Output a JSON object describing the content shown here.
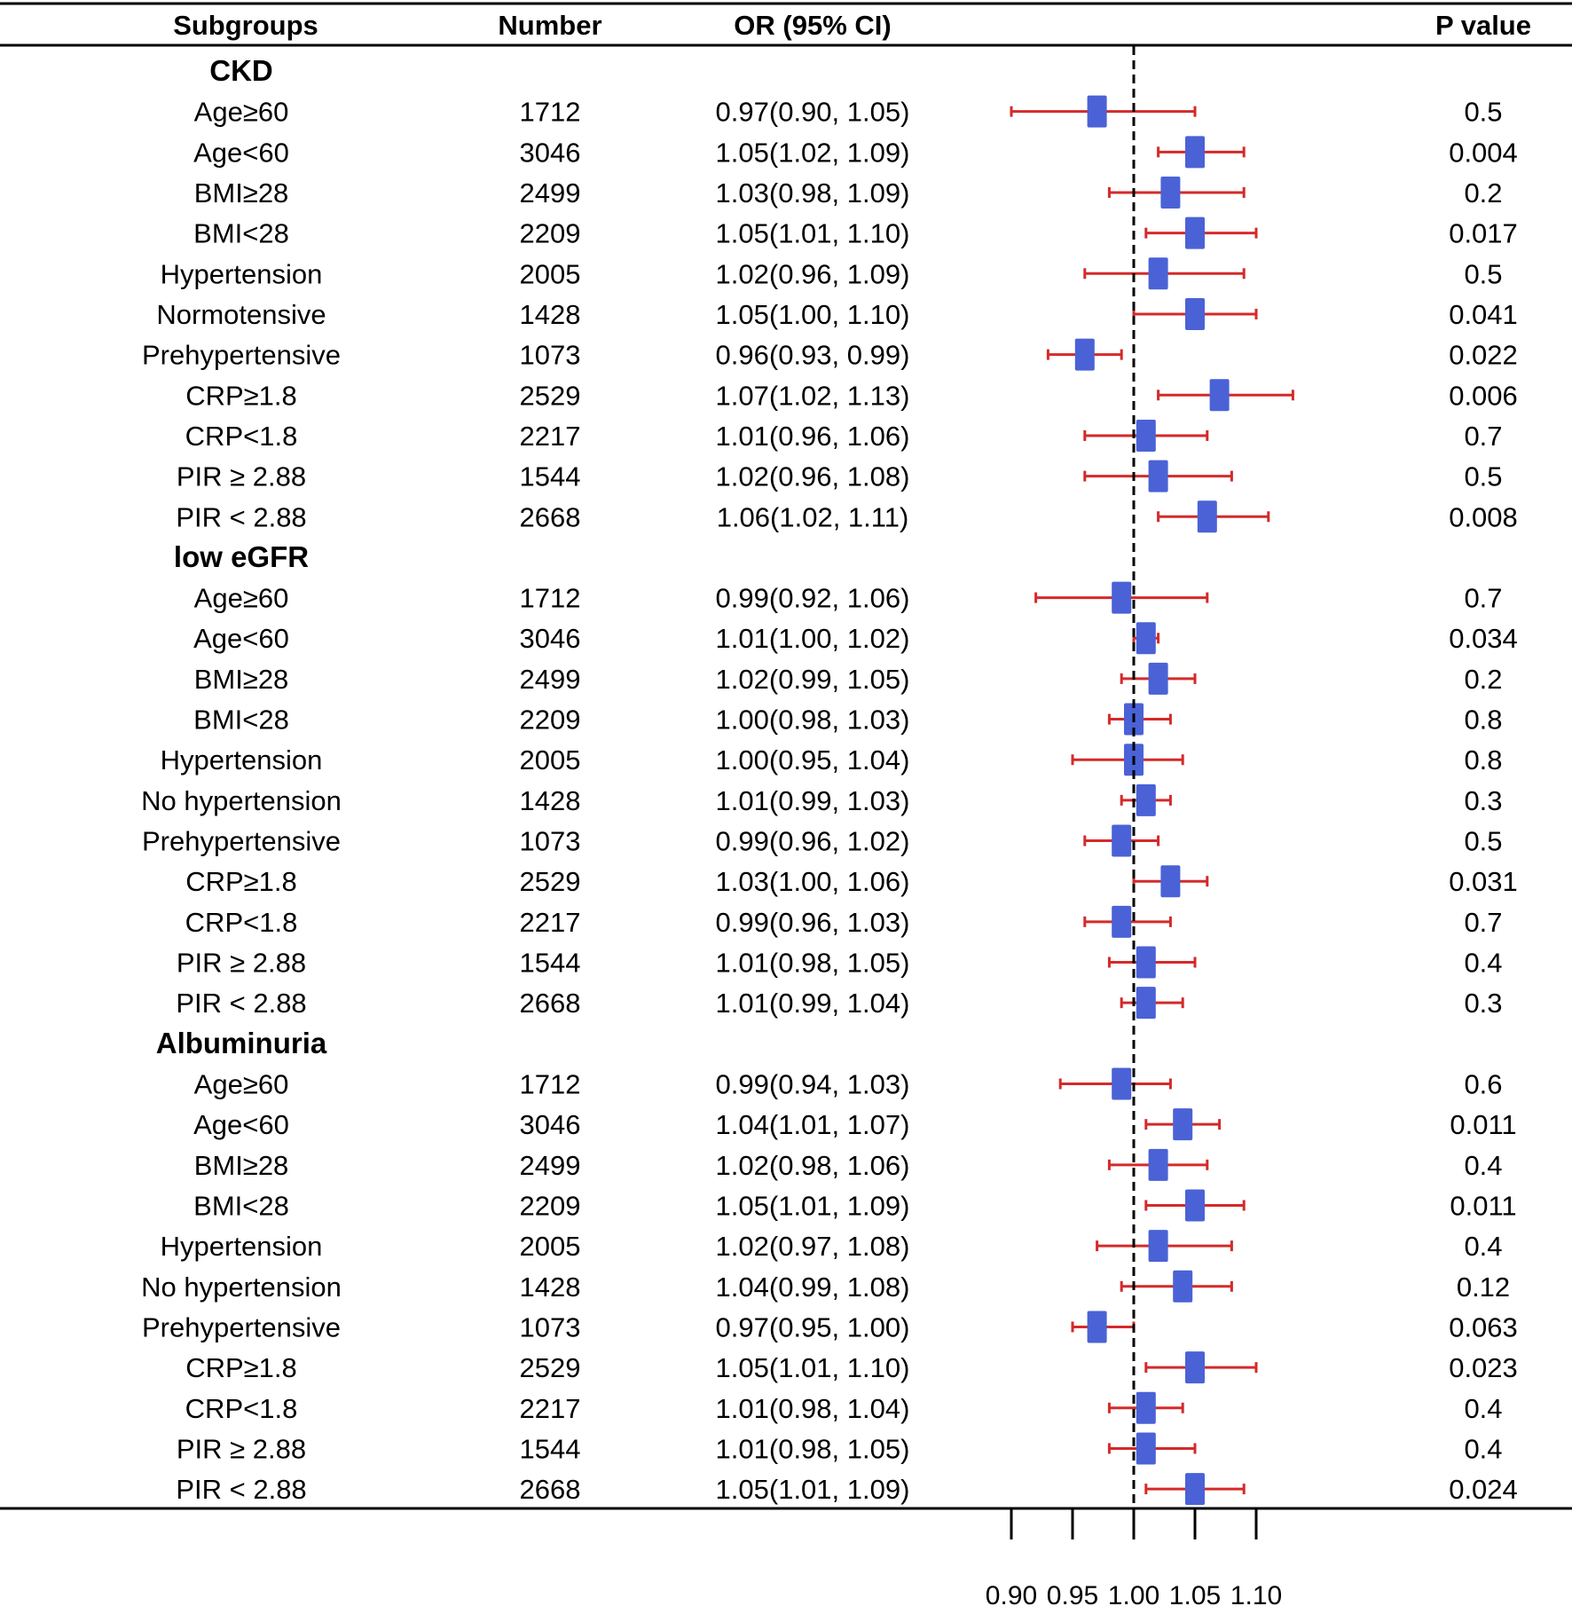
{
  "chart_data": {
    "type": "forest",
    "headers": {
      "subgroups": "Subgroups",
      "number": "Number",
      "or": "OR (95% CI)",
      "p": "P value"
    },
    "xlim": [
      0.9,
      1.1
    ],
    "reference_line": 1.0,
    "x_ticks": [
      "0.90",
      "0.95",
      "1.00",
      "1.05",
      "1.10"
    ],
    "groups": [
      {
        "name": "CKD",
        "rows": [
          {
            "label": "Age≥60",
            "n": "1712",
            "or_text": "0.97(0.90, 1.05)",
            "or": 0.97,
            "lo": 0.9,
            "hi": 1.05,
            "p": "0.5"
          },
          {
            "label": "Age<60",
            "n": "3046",
            "or_text": "1.05(1.02, 1.09)",
            "or": 1.05,
            "lo": 1.02,
            "hi": 1.09,
            "p": "0.004"
          },
          {
            "label": "BMI≥28",
            "n": "2499",
            "or_text": "1.03(0.98, 1.09)",
            "or": 1.03,
            "lo": 0.98,
            "hi": 1.09,
            "p": "0.2"
          },
          {
            "label": "BMI<28",
            "n": "2209",
            "or_text": "1.05(1.01, 1.10)",
            "or": 1.05,
            "lo": 1.01,
            "hi": 1.1,
            "p": "0.017"
          },
          {
            "label": "Hypertension",
            "n": "2005",
            "or_text": "1.02(0.96, 1.09)",
            "or": 1.02,
            "lo": 0.96,
            "hi": 1.09,
            "p": "0.5"
          },
          {
            "label": "Normotensive",
            "n": "1428",
            "or_text": "1.05(1.00, 1.10)",
            "or": 1.05,
            "lo": 1.0,
            "hi": 1.1,
            "p": "0.041"
          },
          {
            "label": "Prehypertensive",
            "n": "1073",
            "or_text": "0.96(0.93, 0.99)",
            "or": 0.96,
            "lo": 0.93,
            "hi": 0.99,
            "p": "0.022"
          },
          {
            "label": "CRP≥1.8",
            "n": "2529",
            "or_text": "1.07(1.02, 1.13)",
            "or": 1.07,
            "lo": 1.02,
            "hi": 1.13,
            "p": "0.006"
          },
          {
            "label": "CRP<1.8",
            "n": "2217",
            "or_text": "1.01(0.96, 1.06)",
            "or": 1.01,
            "lo": 0.96,
            "hi": 1.06,
            "p": "0.7"
          },
          {
            "label": "PIR ≥ 2.88",
            "n": "1544",
            "or_text": "1.02(0.96, 1.08)",
            "or": 1.02,
            "lo": 0.96,
            "hi": 1.08,
            "p": "0.5"
          },
          {
            "label": "PIR < 2.88",
            "n": "2668",
            "or_text": "1.06(1.02, 1.11)",
            "or": 1.06,
            "lo": 1.02,
            "hi": 1.11,
            "p": "0.008"
          }
        ]
      },
      {
        "name": "low eGFR",
        "rows": [
          {
            "label": "Age≥60",
            "n": "1712",
            "or_text": "0.99(0.92, 1.06)",
            "or": 0.99,
            "lo": 0.92,
            "hi": 1.06,
            "p": "0.7"
          },
          {
            "label": "Age<60",
            "n": "3046",
            "or_text": "1.01(1.00, 1.02)",
            "or": 1.01,
            "lo": 1.0,
            "hi": 1.02,
            "p": "0.034"
          },
          {
            "label": "BMI≥28",
            "n": "2499",
            "or_text": "1.02(0.99, 1.05)",
            "or": 1.02,
            "lo": 0.99,
            "hi": 1.05,
            "p": "0.2"
          },
          {
            "label": "BMI<28",
            "n": "2209",
            "or_text": "1.00(0.98, 1.03)",
            "or": 1.0,
            "lo": 0.98,
            "hi": 1.03,
            "p": "0.8"
          },
          {
            "label": "Hypertension",
            "n": "2005",
            "or_text": "1.00(0.95, 1.04)",
            "or": 1.0,
            "lo": 0.95,
            "hi": 1.04,
            "p": "0.8"
          },
          {
            "label": "No hypertension",
            "n": "1428",
            "or_text": "1.01(0.99, 1.03)",
            "or": 1.01,
            "lo": 0.99,
            "hi": 1.03,
            "p": "0.3"
          },
          {
            "label": "Prehypertensive",
            "n": "1073",
            "or_text": "0.99(0.96, 1.02)",
            "or": 0.99,
            "lo": 0.96,
            "hi": 1.02,
            "p": "0.5"
          },
          {
            "label": "CRP≥1.8",
            "n": "2529",
            "or_text": "1.03(1.00, 1.06)",
            "or": 1.03,
            "lo": 1.0,
            "hi": 1.06,
            "p": "0.031"
          },
          {
            "label": "CRP<1.8",
            "n": "2217",
            "or_text": "0.99(0.96, 1.03)",
            "or": 0.99,
            "lo": 0.96,
            "hi": 1.03,
            "p": "0.7"
          },
          {
            "label": "PIR ≥ 2.88",
            "n": "1544",
            "or_text": "1.01(0.98, 1.05)",
            "or": 1.01,
            "lo": 0.98,
            "hi": 1.05,
            "p": "0.4"
          },
          {
            "label": "PIR < 2.88",
            "n": "2668",
            "or_text": "1.01(0.99, 1.04)",
            "or": 1.01,
            "lo": 0.99,
            "hi": 1.04,
            "p": "0.3"
          }
        ]
      },
      {
        "name": "Albuminuria",
        "rows": [
          {
            "label": "Age≥60",
            "n": "1712",
            "or_text": "0.99(0.94, 1.03)",
            "or": 0.99,
            "lo": 0.94,
            "hi": 1.03,
            "p": "0.6"
          },
          {
            "label": "Age<60",
            "n": "3046",
            "or_text": "1.04(1.01, 1.07)",
            "or": 1.04,
            "lo": 1.01,
            "hi": 1.07,
            "p": "0.011"
          },
          {
            "label": "BMI≥28",
            "n": "2499",
            "or_text": "1.02(0.98, 1.06)",
            "or": 1.02,
            "lo": 0.98,
            "hi": 1.06,
            "p": "0.4"
          },
          {
            "label": "BMI<28",
            "n": "2209",
            "or_text": "1.05(1.01, 1.09)",
            "or": 1.05,
            "lo": 1.01,
            "hi": 1.09,
            "p": "0.011"
          },
          {
            "label": "Hypertension",
            "n": "2005",
            "or_text": "1.02(0.97, 1.08)",
            "or": 1.02,
            "lo": 0.97,
            "hi": 1.08,
            "p": "0.4"
          },
          {
            "label": "No hypertension",
            "n": "1428",
            "or_text": "1.04(0.99, 1.08)",
            "or": 1.04,
            "lo": 0.99,
            "hi": 1.08,
            "p": "0.12"
          },
          {
            "label": "Prehypertensive",
            "n": "1073",
            "or_text": "0.97(0.95, 1.00)",
            "or": 0.97,
            "lo": 0.95,
            "hi": 1.0,
            "p": "0.063"
          },
          {
            "label": "CRP≥1.8",
            "n": "2529",
            "or_text": "1.05(1.01, 1.10)",
            "or": 1.05,
            "lo": 1.01,
            "hi": 1.1,
            "p": "0.023"
          },
          {
            "label": "CRP<1.8",
            "n": "2217",
            "or_text": "1.01(0.98, 1.04)",
            "or": 1.01,
            "lo": 0.98,
            "hi": 1.04,
            "p": "0.4"
          },
          {
            "label": "PIR ≥ 2.88",
            "n": "1544",
            "or_text": "1.01(0.98, 1.05)",
            "or": 1.01,
            "lo": 0.98,
            "hi": 1.05,
            "p": "0.4"
          },
          {
            "label": "PIR < 2.88",
            "n": "2668",
            "or_text": "1.05(1.01, 1.09)",
            "or": 1.05,
            "lo": 1.01,
            "hi": 1.09,
            "p": "0.024"
          }
        ]
      }
    ],
    "colors": {
      "box": "#4a62d6",
      "ci": "#d42a2a",
      "line": "#000000"
    }
  }
}
